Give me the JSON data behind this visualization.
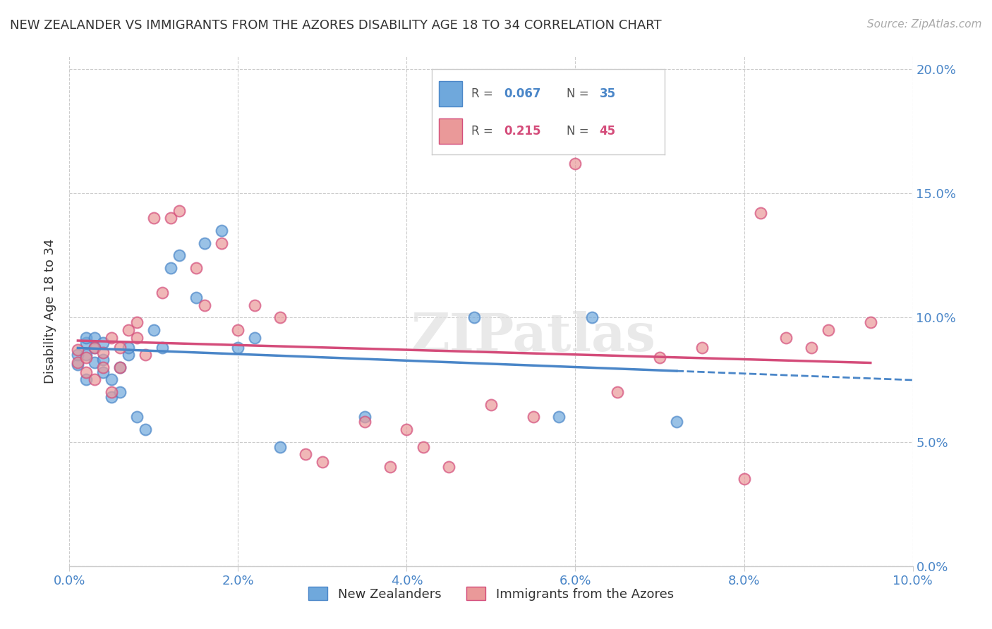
{
  "title": "NEW ZEALANDER VS IMMIGRANTS FROM THE AZORES DISABILITY AGE 18 TO 34 CORRELATION CHART",
  "source": "Source: ZipAtlas.com",
  "ylabel": "Disability Age 18 to 34",
  "xlim": [
    0.0,
    0.1
  ],
  "ylim": [
    0.0,
    0.205
  ],
  "xticks": [
    0.0,
    0.02,
    0.04,
    0.06,
    0.08,
    0.1
  ],
  "yticks": [
    0.0,
    0.05,
    0.1,
    0.15,
    0.2
  ],
  "nz_color": "#6fa8dc",
  "az_color": "#ea9999",
  "nz_line_color": "#4a86c8",
  "az_line_color": "#d44c7a",
  "nz_R": "0.067",
  "nz_N": "35",
  "az_R": "0.215",
  "az_N": "45",
  "nz_x": [
    0.001,
    0.001,
    0.002,
    0.002,
    0.002,
    0.002,
    0.003,
    0.003,
    0.003,
    0.004,
    0.004,
    0.004,
    0.005,
    0.005,
    0.006,
    0.006,
    0.007,
    0.007,
    0.008,
    0.009,
    0.01,
    0.011,
    0.012,
    0.013,
    0.015,
    0.016,
    0.018,
    0.02,
    0.022,
    0.025,
    0.035,
    0.048,
    0.058,
    0.062,
    0.072
  ],
  "nz_y": [
    0.081,
    0.085,
    0.075,
    0.085,
    0.09,
    0.092,
    0.082,
    0.088,
    0.092,
    0.078,
    0.083,
    0.09,
    0.068,
    0.075,
    0.07,
    0.08,
    0.085,
    0.088,
    0.06,
    0.055,
    0.095,
    0.088,
    0.12,
    0.125,
    0.108,
    0.13,
    0.135,
    0.088,
    0.092,
    0.048,
    0.06,
    0.1,
    0.06,
    0.1,
    0.058
  ],
  "az_x": [
    0.001,
    0.001,
    0.002,
    0.002,
    0.003,
    0.003,
    0.004,
    0.004,
    0.005,
    0.005,
    0.006,
    0.006,
    0.007,
    0.008,
    0.008,
    0.009,
    0.01,
    0.011,
    0.012,
    0.013,
    0.015,
    0.016,
    0.018,
    0.02,
    0.022,
    0.025,
    0.028,
    0.03,
    0.035,
    0.038,
    0.04,
    0.042,
    0.045,
    0.05,
    0.055,
    0.06,
    0.065,
    0.07,
    0.075,
    0.08,
    0.082,
    0.085,
    0.088,
    0.09,
    0.095
  ],
  "az_y": [
    0.082,
    0.087,
    0.078,
    0.084,
    0.075,
    0.088,
    0.08,
    0.086,
    0.07,
    0.092,
    0.08,
    0.088,
    0.095,
    0.092,
    0.098,
    0.085,
    0.14,
    0.11,
    0.14,
    0.143,
    0.12,
    0.105,
    0.13,
    0.095,
    0.105,
    0.1,
    0.045,
    0.042,
    0.058,
    0.04,
    0.055,
    0.048,
    0.04,
    0.065,
    0.06,
    0.162,
    0.07,
    0.084,
    0.088,
    0.035,
    0.142,
    0.092,
    0.088,
    0.095,
    0.098
  ],
  "watermark": "ZIPatlas",
  "background_color": "#ffffff"
}
